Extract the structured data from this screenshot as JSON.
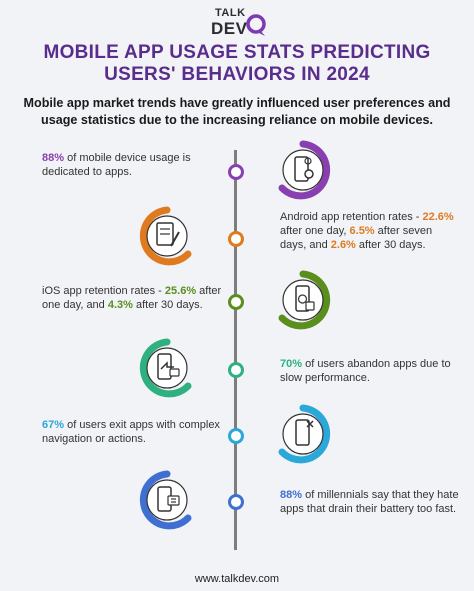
{
  "logo": {
    "line1": "TALK",
    "line2": "DEV"
  },
  "title_line1": "MOBILE APP USAGE STATS PREDICTING",
  "title_line2": "USERS' BEHAVIORS IN 2024",
  "subtitle": "Mobile app market trends have greatly influenced user preferences and usage statistics due to the increasing reliance on mobile devices.",
  "stats": [
    {
      "h1": "88%",
      "t1": " of mobile device usage is dedicated to apps.",
      "color": "#8a3fb0",
      "icon": "phone-settings-icon"
    },
    {
      "t0": "Android app retention rates - ",
      "h1": "22.6%",
      "t1": " after one day, ",
      "h2": "6.5%",
      "t2": " after seven days, and ",
      "h3": "2.6%",
      "t3": " after 30 days.",
      "color": "#e07a1f",
      "icon": "document-edit-icon"
    },
    {
      "t0": "iOS app retention rates - ",
      "h1": "25.6%",
      "t1": " after one day, and ",
      "h2": "4.3%",
      "t2": " after 30 days.",
      "color": "#5a8f1e",
      "icon": "phone-money-icon"
    },
    {
      "h1": "70%",
      "t1": " of users abandon apps due to slow performance.",
      "color": "#2fb081",
      "icon": "phone-exit-icon"
    },
    {
      "h1": "67%",
      "t1": " of users exit apps with complex navigation or actions.",
      "color": "#2aa8d9",
      "icon": "phone-close-icon"
    },
    {
      "h1": "88%",
      "t1": " of millennials say that they hate apps that drain their battery too fast.",
      "color": "#3f6fd1",
      "icon": "battery-icon"
    }
  ],
  "footer": "www.talkdev.com"
}
